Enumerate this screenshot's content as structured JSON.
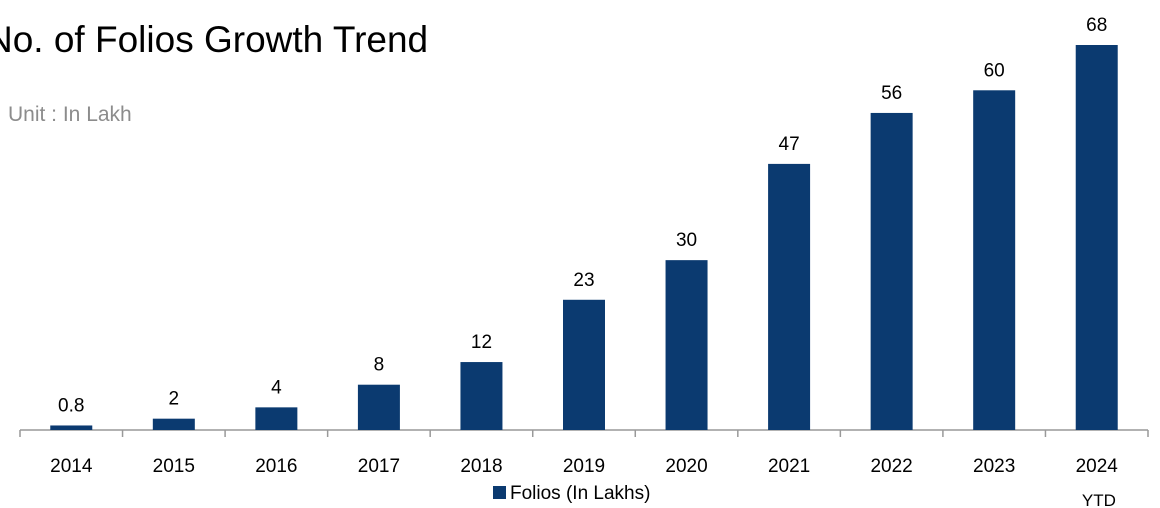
{
  "chart_data": {
    "type": "bar",
    "title": "No. of Folios Growth Trend",
    "subtitle": "Unit : In Lakh",
    "categories": [
      "2014",
      "2015",
      "2016",
      "2017",
      "2018",
      "2019",
      "2020",
      "2021",
      "2022",
      "2023",
      "2024 YTD"
    ],
    "series": [
      {
        "name": "Folios (In Lakhs)",
        "color": "#0b3a70",
        "values": [
          0.8,
          2,
          4,
          8,
          12,
          23,
          30,
          47,
          56,
          60,
          68
        ]
      }
    ]
  }
}
